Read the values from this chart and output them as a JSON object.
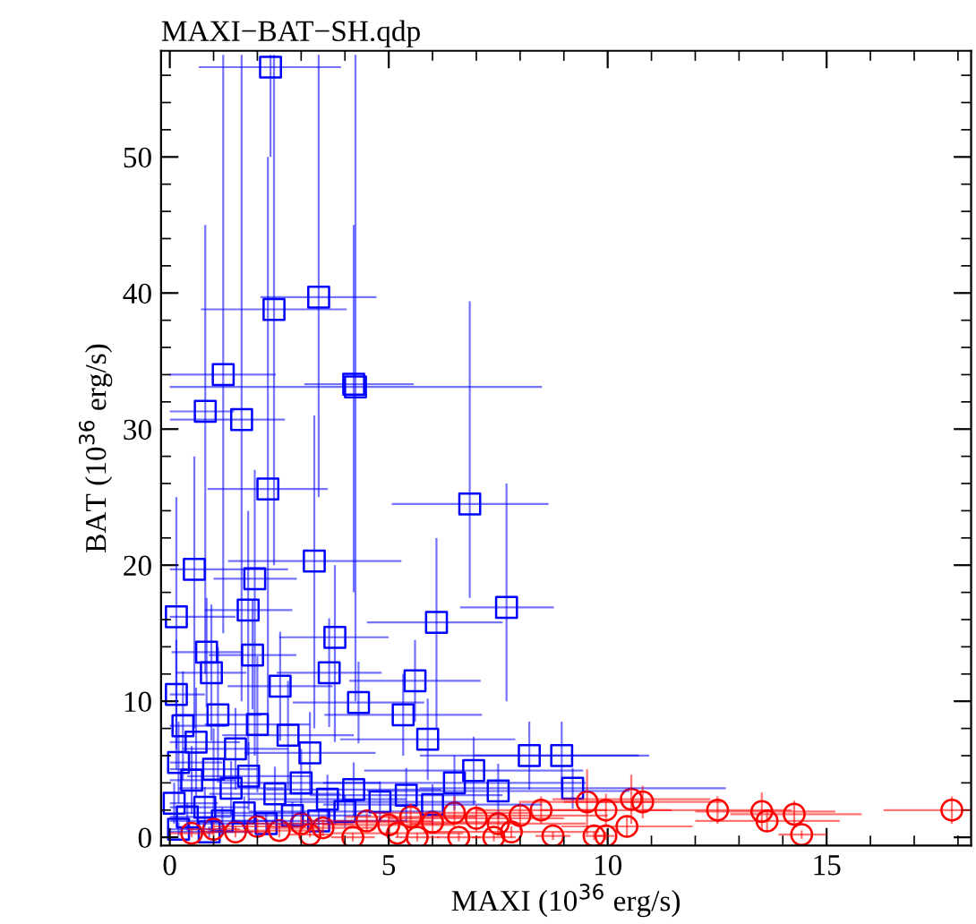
{
  "chart_data": {
    "type": "scatter",
    "title": "MAXI−BAT−SH.qdp",
    "xlabel": "MAXI (10$^{36}$ erg/s)",
    "ylabel": "BAT (10$^{36}$ erg/s)",
    "xlim": [
      -0.2,
      18.3
    ],
    "ylim": [
      -0.6,
      57.8
    ],
    "xticks": [
      0,
      5,
      10,
      15
    ],
    "yticks": [
      0,
      10,
      20,
      30,
      40,
      50
    ],
    "grid": false,
    "legend": false,
    "series": [
      {
        "color": "#0000ff",
        "marker": "square",
        "x": [
          2.3,
          2.38,
          3.4,
          1.22,
          4.2,
          4.24,
          0.81,
          1.64,
          2.24,
          6.85,
          3.3,
          0.56,
          1.94,
          0.15,
          1.79,
          7.69,
          6.09,
          3.77,
          0.84,
          1.89,
          3.64,
          5.6,
          0.95,
          2.52,
          0.15,
          4.31,
          5.33,
          5.89,
          8.21,
          8.95,
          6.94,
          9.2,
          0.3,
          0.6,
          1.1,
          1.5,
          2.0,
          2.7,
          3.2,
          0.2,
          0.5,
          1.0,
          1.4,
          1.8,
          2.4,
          3.0,
          3.6,
          4.2,
          4.8,
          5.4,
          6.0,
          0.1,
          0.4,
          0.8,
          1.2,
          1.7,
          2.2,
          2.8,
          3.4,
          4.0,
          0.2,
          0.9,
          7.5,
          6.5
        ],
        "values": [
          56.6,
          38.8,
          39.7,
          34.0,
          33.3,
          33.1,
          31.3,
          30.7,
          25.6,
          24.5,
          20.3,
          19.7,
          19.0,
          16.2,
          16.7,
          16.9,
          15.8,
          14.7,
          13.6,
          13.4,
          12.1,
          11.5,
          12.1,
          11.1,
          10.5,
          9.9,
          9.0,
          7.2,
          6.0,
          6.0,
          4.9,
          3.6,
          8.2,
          7.0,
          9.0,
          6.5,
          8.3,
          7.5,
          6.2,
          5.5,
          4.2,
          5.0,
          3.6,
          4.5,
          3.2,
          4.0,
          2.8,
          3.5,
          2.6,
          3.1,
          2.4,
          2.5,
          1.5,
          2.2,
          1.2,
          1.8,
          1.0,
          1.6,
          1.2,
          1.9,
          0.6,
          0.4,
          3.4,
          4.0
        ],
        "xerrors": [
          [
            0.66,
            3.91
          ],
          [
            0.71,
            4.04
          ],
          [
            2.07,
            4.72
          ],
          [
            0,
            2.42
          ],
          [
            3.07,
            5.57
          ],
          [
            0,
            8.5
          ],
          [
            0,
            1.47
          ],
          [
            0,
            2.63
          ],
          [
            0.86,
            3.61
          ],
          [
            5.07,
            8.65
          ],
          [
            1.33,
            5.29
          ],
          [
            0,
            2.7
          ],
          [
            1.0,
            2.9
          ],
          [
            0,
            1.5
          ],
          [
            0.8,
            2.8
          ],
          [
            6.63,
            8.77
          ],
          [
            4.5,
            7.6
          ],
          [
            2.5,
            5.0
          ],
          0.8,
          1.0,
          1.2,
          1.5,
          0.8,
          1.2,
          [
            0,
            0.8
          ],
          1.5,
          1.8,
          2.0,
          2.5,
          2.0,
          2.5,
          3.5,
          [
            0,
            1.3
          ],
          [
            0,
            1.6
          ],
          1.0,
          1.2,
          1.2,
          1.5,
          1.5,
          [
            0,
            1.2
          ],
          [
            0,
            1.5
          ],
          1.0,
          1.2,
          1.4,
          1.5,
          1.8,
          1.8,
          2.0,
          2.2,
          2.2,
          2.5,
          [
            0,
            1.1
          ],
          [
            0,
            1.4
          ],
          [
            0,
            1.8
          ],
          1.2,
          1.4,
          1.6,
          1.8,
          2.0,
          2.2,
          [
            0,
            1.2
          ],
          [
            0,
            1.9
          ],
          3.0,
          3.0
        ],
        "errors": [
          [
            50,
            57.5
          ],
          [
            20,
            57.5
          ],
          [
            25,
            57.5
          ],
          [
            15,
            57.5
          ],
          [
            18,
            45
          ],
          [
            10,
            57.5
          ],
          [
            12,
            45
          ],
          [
            10,
            57.5
          ],
          [
            8,
            50
          ],
          [
            17.6,
            39.4
          ],
          [
            8,
            31
          ],
          [
            8,
            28
          ],
          [
            6,
            27
          ],
          [
            5,
            25
          ],
          [
            6,
            24
          ],
          [
            10,
            26
          ],
          [
            8,
            22
          ],
          [
            7,
            20
          ],
          4,
          4,
          4,
          3,
          5,
          4,
          4,
          3,
          3,
          3,
          2.5,
          2.5,
          2.5,
          1.5,
          4,
          4,
          5,
          3,
          5,
          4,
          3,
          3,
          2.5,
          3,
          2,
          2.5,
          2,
          2.5,
          1.8,
          2,
          1.5,
          2,
          1.5,
          1.5,
          1,
          1.5,
          1,
          1.2,
          0.8,
          1,
          0.8,
          1.2,
          0.5,
          0.4,
          2,
          2
        ]
      },
      {
        "color": "#ff0000",
        "marker": "circle",
        "x": [
          17.86,
          12.51,
          13.52,
          13.64,
          14.26,
          14.43,
          10.54,
          10.8,
          10.44,
          9.53,
          9.96,
          8.75,
          9.69,
          9.96,
          8.48,
          6.6,
          7.4,
          5.65,
          4.18,
          0.5,
          1.0,
          1.5,
          2.0,
          2.5,
          3.0,
          3.5,
          4.5,
          5.0,
          5.5,
          6.0,
          6.5,
          7.0,
          7.5,
          8.0,
          3.2,
          5.2,
          7.8
        ],
        "values": [
          2.0,
          2.0,
          1.9,
          1.2,
          1.7,
          0.2,
          2.8,
          2.6,
          0.8,
          2.6,
          2.0,
          0.1,
          0.1,
          0.1,
          2.0,
          0.0,
          0.0,
          0.0,
          0.0,
          0.3,
          0.6,
          0.4,
          0.8,
          0.5,
          1.0,
          0.7,
          1.2,
          0.9,
          1.5,
          1.1,
          1.8,
          1.4,
          1.0,
          1.6,
          0.2,
          0.3,
          0.4
        ],
        "xerrors": [
          [
            16.3,
            18.3
          ],
          [
            10.8,
            14.2
          ],
          [
            12,
            15.2
          ],
          [
            12,
            15.3
          ],
          [
            12.8,
            15.8
          ],
          [
            13.9,
            15.0
          ],
          1.8,
          1.8,
          1.5,
          1.5,
          1.5,
          0.4,
          0.2,
          0.2,
          1.5,
          0.5,
          0.5,
          0.5,
          0.5,
          [
            0,
            1.0
          ],
          0.6,
          0.8,
          1.0,
          1.0,
          1.2,
          1.2,
          1.5,
          1.5,
          1.5,
          1.8,
          1.8,
          2.0,
          2.0,
          2.0,
          0.5,
          1.5,
          2.0
        ],
        "errors": [
          1.0,
          1.0,
          1.4,
          0.8,
          1.0,
          0.3,
          1.8,
          1.2,
          0.8,
          2.4,
          1.2,
          0.3,
          0.3,
          0.3,
          1.0,
          0.3,
          0.3,
          0.3,
          0.3,
          0.3,
          0.5,
          0.4,
          0.6,
          0.5,
          0.7,
          0.6,
          0.8,
          0.7,
          1.0,
          0.8,
          1.2,
          1.0,
          0.9,
          1.1,
          0.2,
          0.3,
          0.4
        ]
      }
    ]
  }
}
